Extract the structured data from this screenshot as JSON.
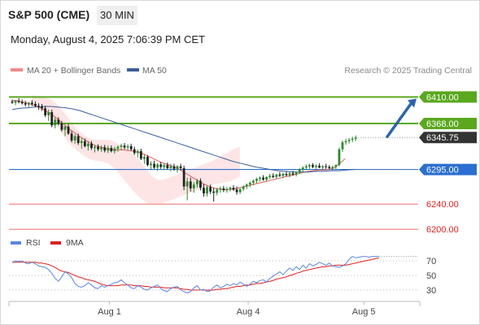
{
  "header": {
    "title": "S&P 500 (CME)",
    "interval": "30 MIN",
    "timestamp": "Monday, August 4, 2025 7:06:39 PM CET"
  },
  "legend": {
    "ma20_bb": "MA 20 + Bollinger Bands",
    "ma50": "MA 50",
    "source": "Research © 2025 Trading Central",
    "rsi": "RSI",
    "rsi_ma": "9MA"
  },
  "colors": {
    "candle_up": "#2e8b2e",
    "candle_down": "#222222",
    "ma20": "#e05a5a",
    "bollinger_fill": "#fde0e0",
    "ma50": "#3a5f9a",
    "green_level": "#5aa81e",
    "blue_level": "#2a6fd1",
    "red_level": "#f28a8a",
    "rsi_line": "#5b86e5",
    "rsi_ma_line": "#e0201e",
    "price_label_bg": "#333333",
    "arrow": "#2a64b2"
  },
  "chart_data": {
    "type": "candlestick",
    "price_axis": {
      "min": 6190,
      "max": 6435
    },
    "levels": [
      {
        "value": 6410.0,
        "label": "6410.00",
        "kind": "resistance"
      },
      {
        "value": 6368.0,
        "label": "6368.00",
        "kind": "resistance"
      },
      {
        "value": 6295.0,
        "label": "6295.00",
        "kind": "pivot"
      },
      {
        "value": 6240.0,
        "label": "6240.00",
        "kind": "support"
      },
      {
        "value": 6200.0,
        "label": "6200.00",
        "kind": "support"
      }
    ],
    "last_price": {
      "value": 6345.75,
      "label": "6345.75"
    },
    "x_ticks": [
      {
        "label": "Aug 1",
        "bar": 26
      },
      {
        "label": "Aug 4",
        "bar": 68
      },
      {
        "label": "Aug 5",
        "bar": 103
      }
    ],
    "bars_total": 112,
    "candles": [
      [
        6403,
        6406,
        6399,
        6401
      ],
      [
        6401,
        6405,
        6397,
        6404
      ],
      [
        6404,
        6408,
        6400,
        6402
      ],
      [
        6402,
        6406,
        6398,
        6400
      ],
      [
        6400,
        6404,
        6395,
        6398
      ],
      [
        6398,
        6402,
        6394,
        6401
      ],
      [
        6401,
        6405,
        6396,
        6399
      ],
      [
        6399,
        6403,
        6394,
        6396
      ],
      [
        6396,
        6400,
        6390,
        6395
      ],
      [
        6395,
        6399,
        6388,
        6392
      ],
      [
        6392,
        6396,
        6378,
        6381
      ],
      [
        6381,
        6390,
        6372,
        6386
      ],
      [
        6386,
        6390,
        6362,
        6365
      ],
      [
        6365,
        6378,
        6360,
        6374
      ],
      [
        6374,
        6378,
        6365,
        6368
      ],
      [
        6368,
        6372,
        6355,
        6358
      ],
      [
        6358,
        6366,
        6348,
        6363
      ],
      [
        6363,
        6367,
        6350,
        6352
      ],
      [
        6352,
        6356,
        6338,
        6341
      ],
      [
        6341,
        6351,
        6336,
        6348
      ],
      [
        6348,
        6352,
        6334,
        6337
      ],
      [
        6337,
        6345,
        6328,
        6340
      ],
      [
        6340,
        6344,
        6330,
        6332
      ],
      [
        6332,
        6340,
        6325,
        6336
      ],
      [
        6336,
        6340,
        6326,
        6329
      ],
      [
        6329,
        6334,
        6322,
        6331
      ],
      [
        6331,
        6335,
        6324,
        6327
      ],
      [
        6327,
        6333,
        6323,
        6330
      ],
      [
        6330,
        6334,
        6322,
        6325
      ],
      [
        6325,
        6333,
        6321,
        6329
      ],
      [
        6329,
        6333,
        6322,
        6324
      ],
      [
        6324,
        6331,
        6320,
        6328
      ],
      [
        6328,
        6333,
        6323,
        6331
      ],
      [
        6331,
        6336,
        6326,
        6333
      ],
      [
        6333,
        6337,
        6327,
        6330
      ],
      [
        6330,
        6335,
        6325,
        6332
      ],
      [
        6332,
        6336,
        6324,
        6327
      ],
      [
        6327,
        6331,
        6318,
        6321
      ],
      [
        6321,
        6327,
        6314,
        6324
      ],
      [
        6324,
        6328,
        6310,
        6312
      ],
      [
        6312,
        6318,
        6304,
        6315
      ],
      [
        6315,
        6318,
        6300,
        6302
      ],
      [
        6302,
        6308,
        6294,
        6304
      ],
      [
        6304,
        6309,
        6296,
        6298
      ],
      [
        6298,
        6305,
        6293,
        6303
      ],
      [
        6303,
        6307,
        6296,
        6299
      ],
      [
        6299,
        6305,
        6294,
        6302
      ],
      [
        6302,
        6306,
        6295,
        6297
      ],
      [
        6297,
        6304,
        6292,
        6300
      ],
      [
        6300,
        6304,
        6293,
        6296
      ],
      [
        6296,
        6302,
        6290,
        6300
      ],
      [
        6300,
        6304,
        6294,
        6297
      ],
      [
        6297,
        6301,
        6262,
        6268
      ],
      [
        6268,
        6282,
        6246,
        6276
      ],
      [
        6276,
        6282,
        6260,
        6265
      ],
      [
        6265,
        6275,
        6258,
        6271
      ],
      [
        6271,
        6280,
        6266,
        6277
      ],
      [
        6277,
        6281,
        6262,
        6266
      ],
      [
        6266,
        6272,
        6252,
        6257
      ],
      [
        6257,
        6270,
        6252,
        6267
      ],
      [
        6267,
        6271,
        6256,
        6260
      ],
      [
        6260,
        6266,
        6244,
        6258
      ],
      [
        6258,
        6266,
        6254,
        6263
      ],
      [
        6263,
        6268,
        6258,
        6265
      ],
      [
        6265,
        6269,
        6259,
        6262
      ],
      [
        6262,
        6267,
        6258,
        6264
      ],
      [
        6264,
        6268,
        6260,
        6266
      ],
      [
        6266,
        6270,
        6261,
        6263
      ],
      [
        6263,
        6268,
        6255,
        6259
      ],
      [
        6259,
        6265,
        6256,
        6264
      ],
      [
        6264,
        6270,
        6261,
        6268
      ],
      [
        6268,
        6273,
        6264,
        6271
      ],
      [
        6271,
        6276,
        6267,
        6274
      ],
      [
        6274,
        6279,
        6270,
        6277
      ],
      [
        6277,
        6282,
        6273,
        6280
      ],
      [
        6280,
        6284,
        6276,
        6282
      ],
      [
        6282,
        6286,
        6277,
        6279
      ],
      [
        6279,
        6284,
        6276,
        6283
      ],
      [
        6283,
        6288,
        6280,
        6285
      ],
      [
        6285,
        6289,
        6281,
        6283
      ],
      [
        6283,
        6288,
        6280,
        6287
      ],
      [
        6287,
        6291,
        6283,
        6285
      ],
      [
        6285,
        6290,
        6281,
        6288
      ],
      [
        6288,
        6292,
        6284,
        6286
      ],
      [
        6286,
        6291,
        6283,
        6289
      ],
      [
        6289,
        6293,
        6285,
        6287
      ],
      [
        6287,
        6292,
        6284,
        6290
      ],
      [
        6290,
        6297,
        6288,
        6295
      ],
      [
        6295,
        6300,
        6291,
        6298
      ],
      [
        6298,
        6303,
        6294,
        6300
      ],
      [
        6300,
        6304,
        6296,
        6302
      ],
      [
        6302,
        6305,
        6297,
        6299
      ],
      [
        6299,
        6303,
        6296,
        6301
      ],
      [
        6301,
        6305,
        6297,
        6298
      ],
      [
        6298,
        6302,
        6295,
        6300
      ],
      [
        6300,
        6304,
        6296,
        6299
      ],
      [
        6299,
        6302,
        6295,
        6297
      ],
      [
        6297,
        6301,
        6294,
        6299
      ],
      [
        6299,
        6303,
        6296,
        6302
      ],
      [
        6302,
        6330,
        6300,
        6327
      ],
      [
        6327,
        6341,
        6323,
        6338
      ],
      [
        6338,
        6344,
        6334,
        6340
      ],
      [
        6340,
        6345,
        6336,
        6342
      ],
      [
        6342,
        6347,
        6338,
        6344
      ],
      [
        6344,
        6349,
        6340,
        6346
      ]
    ],
    "ma20": {
      "start": 0,
      "values": [
        6405,
        6404,
        6402,
        6400,
        6397,
        6394,
        6390,
        6385,
        6379,
        6372,
        6365,
        6358,
        6352,
        6346,
        6341,
        6336,
        6332,
        6330,
        6328,
        6327,
        6326,
        6326,
        6325,
        6324,
        6322,
        6319,
        6315,
        6311,
        6307,
        6304,
        6301,
        6298,
        6293,
        6288,
        6283,
        6278,
        6273,
        6269,
        6266,
        6264,
        6263,
        6263,
        6264,
        6266,
        6268,
        6270,
        6272,
        6274,
        6276,
        6278,
        6280,
        6282,
        6284,
        6286,
        6288,
        6290,
        6292,
        6293,
        6294,
        6294,
        6295,
        6298,
        6305,
        6312
      ]
    },
    "bb_upper": {
      "start": 0,
      "values": [
        6412,
        6412,
        6411,
        6410,
        6409,
        6407,
        6405,
        6402,
        6397,
        6391,
        6384,
        6377,
        6370,
        6364,
        6358,
        6353,
        6349,
        6346,
        6344,
        6343,
        6342,
        6342,
        6342,
        6342,
        6341,
        6339,
        6336,
        6333,
        6330,
        6326,
        6322,
        6318,
        6313,
        6307,
        6300,
        6293,
        6287,
        6282,
        6279,
        6278,
        6279,
        6281,
        6283,
        6285,
        6287,
        6289,
        6291,
        6293,
        6295,
        6297,
        6299,
        6301,
        6303,
        6305,
        6307,
        6309,
        6312,
        6315,
        6318,
        6321,
        6324,
        6327,
        6329,
        6331
      ]
    },
    "bb_lower": {
      "start": 0,
      "values": [
        6398,
        6396,
        6393,
        6390,
        6386,
        6381,
        6375,
        6368,
        6361,
        6353,
        6346,
        6339,
        6333,
        6328,
        6324,
        6320,
        6316,
        6313,
        6311,
        6309,
        6308,
        6308,
        6306,
        6305,
        6301,
        6297,
        6292,
        6285,
        6278,
        6272,
        6266,
        6260,
        6254,
        6249,
        6245,
        6242,
        6240,
        6239,
        6239,
        6240,
        6242,
        6244,
        6246,
        6248,
        6250,
        6252,
        6254,
        6256,
        6258,
        6260,
        6262,
        6264,
        6266,
        6268,
        6270,
        6271,
        6272,
        6273,
        6274,
        6275,
        6276,
        6278,
        6281,
        6284
      ]
    },
    "ma50": {
      "start": 0,
      "values": [
        6390,
        6392,
        6393,
        6394,
        6395,
        6395,
        6394,
        6393,
        6391,
        6388,
        6384,
        6380,
        6376,
        6372,
        6368,
        6364,
        6360,
        6356,
        6352,
        6348,
        6344,
        6340,
        6336,
        6332,
        6328,
        6324,
        6320,
        6316,
        6312,
        6308,
        6305,
        6302,
        6299,
        6297,
        6295,
        6293,
        6292,
        6291,
        6291,
        6291,
        6292,
        6292,
        6293,
        6293,
        6294,
        6295
      ]
    },
    "rsi": {
      "axis": {
        "min": 20,
        "max": 80
      },
      "ticks": [
        70,
        50,
        30
      ],
      "values": [
        68,
        70,
        69,
        70,
        67,
        66,
        68,
        66,
        63,
        62,
        61,
        58,
        53,
        46,
        42,
        48,
        55,
        52,
        47,
        39,
        35,
        34,
        36,
        40,
        37,
        33,
        32,
        36,
        34,
        36,
        38,
        40,
        41,
        44,
        40,
        37,
        33,
        32,
        36,
        34,
        31,
        30,
        33,
        35,
        37,
        32,
        29,
        28,
        32,
        34,
        35,
        30,
        28,
        26,
        28,
        33,
        36,
        30,
        31,
        28,
        29,
        34,
        37,
        33,
        35,
        38,
        36,
        39,
        37,
        41,
        38,
        35,
        38,
        42,
        40,
        43,
        44,
        41,
        46,
        49,
        52,
        55,
        51,
        56,
        60,
        57,
        62,
        58,
        64,
        60,
        66,
        63,
        65,
        68,
        66,
        64,
        67,
        63,
        62,
        61,
        63,
        66,
        72,
        76,
        74,
        75,
        76,
        76,
        75,
        76,
        76,
        76
      ],
      "ma_values": [
        68,
        68,
        68,
        68,
        68,
        68,
        68,
        68,
        67,
        67,
        66,
        65,
        63,
        61,
        58,
        56,
        55,
        54,
        52,
        50,
        48,
        47,
        45,
        44,
        43,
        42,
        40,
        38,
        37,
        36,
        36,
        36,
        36,
        37,
        37,
        37,
        37,
        36,
        36,
        36,
        35,
        35,
        34,
        34,
        34,
        34,
        33,
        33,
        33,
        33,
        33,
        32,
        31,
        31,
        30,
        30,
        30,
        30,
        30,
        30,
        30,
        30,
        31,
        31,
        32,
        32,
        33,
        34,
        35,
        35,
        36,
        37,
        37,
        38,
        39,
        39,
        40,
        41,
        42,
        43,
        45,
        46,
        47,
        48,
        50,
        51,
        53,
        54,
        56,
        57,
        58,
        59,
        60,
        61,
        62,
        62,
        63,
        63,
        64,
        64,
        64,
        64,
        65,
        66,
        67,
        68,
        69,
        70,
        71,
        72,
        73,
        74
      ]
    }
  }
}
